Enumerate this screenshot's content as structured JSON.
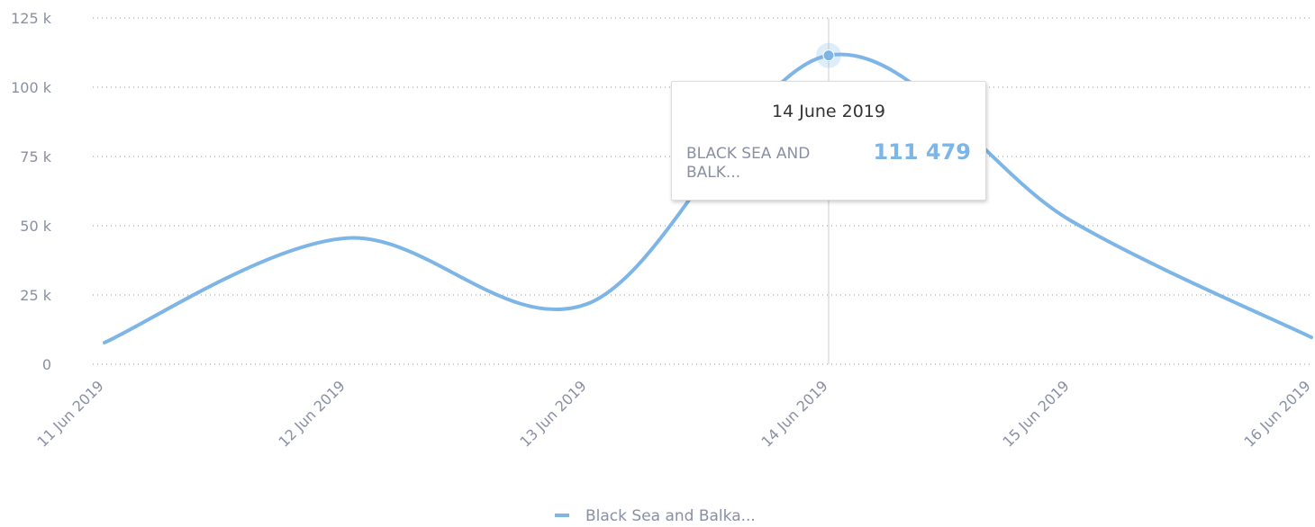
{
  "chart_data": {
    "type": "line",
    "categories": [
      "11 Jun 2019",
      "12 Jun 2019",
      "13 Jun 2019",
      "14 Jun 2019",
      "15 Jun 2019",
      "16 Jun 2019"
    ],
    "series": [
      {
        "name": "Black Sea and Balka...",
        "color": "#7eb5e7",
        "values": [
          7800,
          45500,
          21800,
          111479,
          52000,
          9700
        ],
        "value_labels": [
          null,
          null,
          null,
          "111 479",
          null,
          null
        ]
      }
    ],
    "ylim": [
      0,
      125000
    ],
    "yticks": [
      {
        "value": 0,
        "label": "0"
      },
      {
        "value": 25000,
        "label": "25 k"
      },
      {
        "value": 50000,
        "label": "50 k"
      },
      {
        "value": 75000,
        "label": "75 k"
      },
      {
        "value": 100000,
        "label": "100 k"
      },
      {
        "value": 125000,
        "label": "125 k"
      }
    ],
    "grid": true,
    "legend": "bottom",
    "tooltip": {
      "title": "14 June 2019",
      "label": "BLACK SEA AND BALK..."
    }
  }
}
